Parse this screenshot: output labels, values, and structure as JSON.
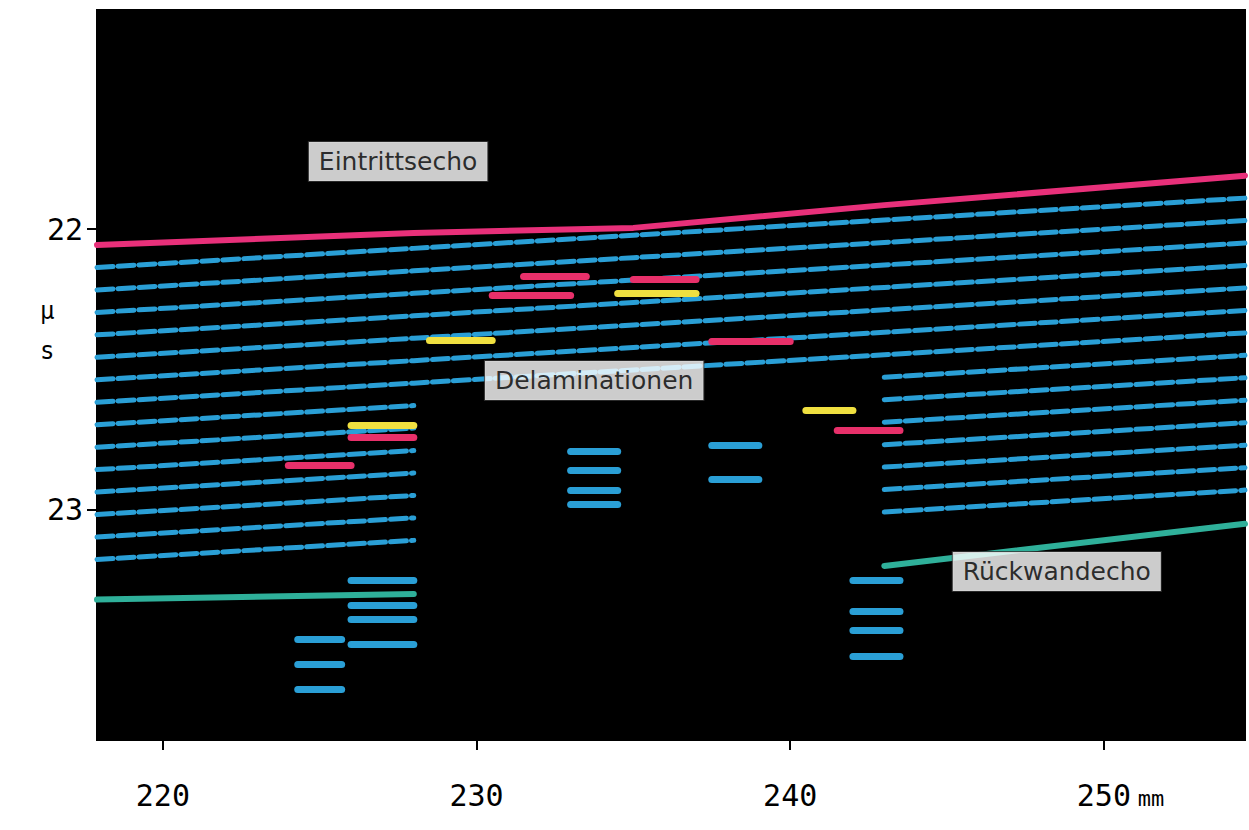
{
  "chart_data": {
    "type": "line",
    "x_label": "mm",
    "y_label": "µs",
    "xlim": [
      217.9,
      254.5
    ],
    "xticks": [
      220,
      230,
      240,
      250
    ],
    "ylim": [
      23.82,
      21.22
    ],
    "yticks": [
      22,
      23
    ],
    "grid": false,
    "x": [
      217.9,
      228,
      235,
      243,
      254.5
    ],
    "series": [
      {
        "color": "#e8307a",
        "line_style": "solid",
        "values": [
          22.057,
          22.014,
          21.996,
          21.915,
          21.81
        ]
      },
      {
        "color": "#2a9fd6",
        "line_style": "dashed",
        "values": [
          22.137,
          22.069,
          22.022,
          21.968,
          21.89
        ]
      },
      {
        "color": "#2a9fd6",
        "line_style": "dashed",
        "values": [
          22.217,
          22.149,
          22.102,
          22.048,
          21.97
        ]
      },
      {
        "color": "#2a9fd6",
        "line_style": "dashed",
        "values": [
          22.297,
          22.229,
          22.182,
          22.128,
          22.05
        ]
      },
      {
        "color": "#2a9fd6",
        "line_style": "dashed",
        "values": [
          22.377,
          22.309,
          22.262,
          22.208,
          22.13
        ]
      },
      {
        "color": "#2a9fd6",
        "line_style": "dashed",
        "values": [
          22.457,
          22.389,
          22.342,
          22.288,
          22.21
        ]
      },
      {
        "color": "#2a9fd6",
        "line_style": "dashed",
        "values": [
          22.537,
          22.469,
          22.422,
          22.368,
          22.29
        ]
      },
      {
        "color": "#2a9fd6",
        "line_style": "dashed",
        "values": [
          22.617,
          22.549,
          22.502,
          22.448,
          22.37
        ]
      },
      {
        "color": "#2a9fd6",
        "line_style": "dashed",
        "values": [
          22.697,
          22.629,
          null,
          22.528,
          22.45
        ]
      },
      {
        "color": "#2a9fd6",
        "line_style": "dashed",
        "values": [
          22.777,
          22.709,
          null,
          22.608,
          22.53
        ]
      },
      {
        "color": "#2a9fd6",
        "line_style": "dashed",
        "values": [
          22.857,
          22.789,
          null,
          22.688,
          22.61
        ]
      },
      {
        "color": "#2a9fd6",
        "line_style": "dashed",
        "values": [
          22.937,
          22.869,
          null,
          22.768,
          22.69
        ]
      },
      {
        "color": "#2a9fd6",
        "line_style": "dashed",
        "values": [
          23.017,
          22.949,
          null,
          22.848,
          22.77
        ]
      },
      {
        "color": "#2a9fd6",
        "line_style": "dashed",
        "values": [
          23.097,
          23.029,
          null,
          22.928,
          22.85
        ]
      },
      {
        "color": "#2a9fd6",
        "line_style": "dashed",
        "values": [
          23.177,
          23.109,
          null,
          23.008,
          22.93
        ]
      },
      {
        "color": "#2fb09a",
        "line_style": "solid",
        "values": [
          23.32,
          23.3,
          null,
          23.2,
          23.05
        ]
      },
      {
        "type": "segments",
        "segments": [
          [
            230.5,
            233,
            22.235
          ],
          [
            231.5,
            233.5,
            22.17
          ],
          [
            234.5,
            237,
            22.23
          ],
          [
            235,
            237,
            22.18
          ],
          [
            237.5,
            240,
            22.4
          ],
          [
            228.5,
            230.5,
            22.395
          ],
          [
            226,
            228,
            22.74
          ],
          [
            226,
            228,
            22.7
          ],
          [
            224,
            226,
            22.84
          ],
          [
            240.5,
            242,
            22.644
          ],
          [
            241.5,
            243.5,
            22.715
          ]
        ],
        "colors": [
          "#e8306a",
          "#e8306a",
          "#f0e040",
          "#e8306a",
          "#e8306a",
          "#f0e040",
          "#e8306a",
          "#f0e040",
          "#e8306a",
          "#f0e040",
          "#e8306a"
        ]
      },
      {
        "type": "segments",
        "color": "#2a9fd6",
        "segments": [
          [
            224.3,
            225.7,
            23.46
          ],
          [
            224.3,
            225.7,
            23.55
          ],
          [
            224.3,
            225.7,
            23.64
          ],
          [
            226,
            228,
            23.25
          ],
          [
            226,
            228,
            23.34
          ],
          [
            226,
            228,
            23.39
          ],
          [
            226,
            228,
            23.48
          ],
          [
            233,
            234.5,
            22.79
          ],
          [
            233,
            234.5,
            22.86
          ],
          [
            233,
            234.5,
            22.93
          ],
          [
            233,
            234.5,
            22.98
          ],
          [
            237.5,
            239,
            22.77
          ],
          [
            237.5,
            239,
            22.89
          ],
          [
            242,
            243.5,
            23.25
          ],
          [
            242,
            243.5,
            23.36
          ],
          [
            242,
            243.5,
            23.43
          ],
          [
            242,
            243.5,
            23.52
          ]
        ]
      }
    ],
    "annotations": [
      {
        "text": "Eintrittsecho",
        "x": 227.5,
        "y": 21.76
      },
      {
        "text": "Delaminationen",
        "x": 233.75,
        "y": 22.54
      },
      {
        "text": "Rückwandecho",
        "x": 248.5,
        "y": 23.22
      }
    ]
  }
}
